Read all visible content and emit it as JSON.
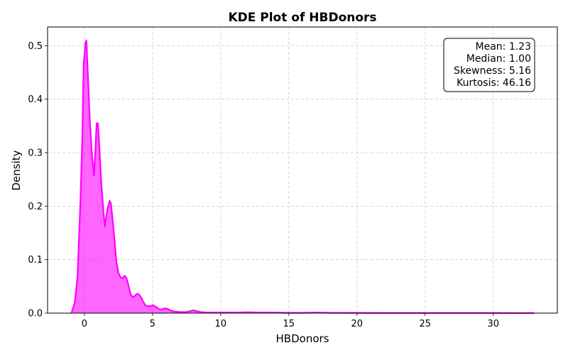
{
  "chart_data": {
    "type": "area",
    "title": "KDE Plot of HBDonors",
    "xlabel": "HBDonors",
    "ylabel": "Density",
    "xlim": [
      -2.7,
      34.7
    ],
    "ylim": [
      0,
      0.535
    ],
    "xticks": [
      0,
      5,
      10,
      15,
      20,
      25,
      30
    ],
    "yticks": [
      0.0,
      0.1,
      0.2,
      0.3,
      0.4,
      0.5
    ],
    "xtick_labels": [
      "0",
      "5",
      "10",
      "15",
      "20",
      "25",
      "30"
    ],
    "ytick_labels": [
      "0.0",
      "0.1",
      "0.2",
      "0.3",
      "0.4",
      "0.5"
    ],
    "grid": true,
    "color": "#ff00ff",
    "fill_alpha": 0.6,
    "x": [
      -0.95,
      -0.7,
      -0.5,
      -0.3,
      -0.15,
      -0.05,
      0.0,
      0.08,
      0.15,
      0.25,
      0.4,
      0.55,
      0.7,
      0.8,
      0.9,
      1.0,
      1.1,
      1.25,
      1.4,
      1.5,
      1.6,
      1.7,
      1.85,
      1.95,
      2.05,
      2.2,
      2.35,
      2.5,
      2.65,
      2.8,
      2.95,
      3.1,
      3.25,
      3.4,
      3.55,
      3.7,
      3.85,
      4.0,
      4.15,
      4.3,
      4.5,
      4.7,
      4.9,
      5.0,
      5.1,
      5.3,
      5.5,
      5.7,
      5.9,
      6.1,
      6.3,
      6.6,
      7.0,
      7.5,
      7.8,
      8.0,
      8.2,
      8.5,
      9.0,
      10.0,
      11.0,
      12.0,
      13.0,
      14.0,
      15.0,
      16.0,
      17.0,
      18.0,
      19.0,
      20.0,
      22.0,
      25.0,
      28.0,
      30.0,
      32.0,
      33.0
    ],
    "y": [
      0.0,
      0.02,
      0.07,
      0.2,
      0.33,
      0.47,
      0.48,
      0.505,
      0.51,
      0.45,
      0.36,
      0.3,
      0.257,
      0.3,
      0.355,
      0.355,
      0.31,
      0.24,
      0.19,
      0.162,
      0.18,
      0.195,
      0.21,
      0.205,
      0.18,
      0.14,
      0.096,
      0.075,
      0.067,
      0.065,
      0.07,
      0.065,
      0.05,
      0.035,
      0.03,
      0.032,
      0.036,
      0.035,
      0.03,
      0.022,
      0.014,
      0.013,
      0.013,
      0.015,
      0.014,
      0.011,
      0.007,
      0.007,
      0.009,
      0.008,
      0.005,
      0.003,
      0.002,
      0.002,
      0.004,
      0.005,
      0.004,
      0.002,
      0.001,
      0.001,
      0.001,
      0.0015,
      0.001,
      0.001,
      0.0005,
      0.0005,
      0.001,
      0.0005,
      0.0005,
      0.0003,
      0.0002,
      0.0002,
      0.0002,
      0.0002,
      0.0001,
      0.0
    ],
    "annotation": [
      "Mean: 1.23",
      "Median: 1.00",
      "Skewness: 5.16",
      "Kurtosis: 46.16"
    ]
  }
}
